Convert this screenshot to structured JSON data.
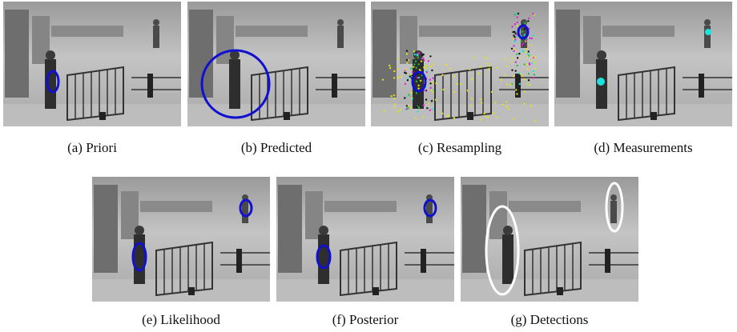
{
  "panels": [
    {
      "caption": "(a) Priori"
    },
    {
      "caption": "(b) Predicted"
    },
    {
      "caption": "(c) Resampling"
    },
    {
      "caption": "(d) Measurements"
    },
    {
      "caption": "(e) Likelihood"
    },
    {
      "caption": "(f) Posterior"
    },
    {
      "caption": "(g) Detections"
    }
  ]
}
